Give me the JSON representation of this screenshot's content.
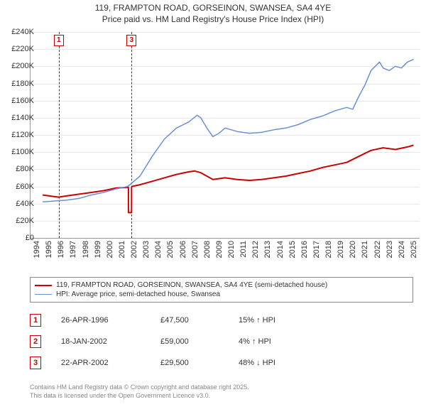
{
  "title_line1": "119, FRAMPTON ROAD, GORSEINON, SWANSEA, SA4 4YE",
  "title_line2": "Price paid vs. HM Land Registry's House Price Index (HPI)",
  "chart": {
    "type": "line",
    "xlim": [
      1994,
      2026
    ],
    "ylim": [
      0,
      240000
    ],
    "ytick_step": 20000,
    "ylabel_format_k": true,
    "grid_color": "#e8e8e8",
    "axis_color": "#999999",
    "font_size": 11,
    "x_ticks": [
      1994,
      1995,
      1996,
      1997,
      1998,
      1999,
      2000,
      2001,
      2002,
      2003,
      2004,
      2005,
      2006,
      2007,
      2008,
      2009,
      2010,
      2011,
      2012,
      2013,
      2014,
      2015,
      2016,
      2017,
      2018,
      2019,
      2020,
      2021,
      2022,
      2023,
      2024,
      2025
    ],
    "series": [
      {
        "name": "119, FRAMPTON ROAD, GORSEINON, SWANSEA, SA4 4YE (semi-detached house)",
        "color": "#cc0000",
        "width": 2,
        "data": [
          [
            1995.0,
            50000
          ],
          [
            1995.5,
            49000
          ],
          [
            1996.3,
            47500
          ],
          [
            1997.0,
            49000
          ],
          [
            1998.0,
            51000
          ],
          [
            1999.0,
            53000
          ],
          [
            2000.0,
            55000
          ],
          [
            2001.0,
            58000
          ],
          [
            2002.04,
            59000
          ],
          [
            2002.05,
            59000
          ],
          [
            2002.055,
            29500
          ],
          [
            2002.31,
            29500
          ],
          [
            2002.31,
            59000
          ],
          [
            2002.35,
            60000
          ],
          [
            2003.0,
            62000
          ],
          [
            2004.0,
            66000
          ],
          [
            2005.0,
            70000
          ],
          [
            2006.0,
            74000
          ],
          [
            2007.0,
            77000
          ],
          [
            2007.5,
            78000
          ],
          [
            2008.0,
            76000
          ],
          [
            2009.0,
            68000
          ],
          [
            2010.0,
            70000
          ],
          [
            2011.0,
            68000
          ],
          [
            2012.0,
            67000
          ],
          [
            2013.0,
            68000
          ],
          [
            2014.0,
            70000
          ],
          [
            2015.0,
            72000
          ],
          [
            2016.0,
            75000
          ],
          [
            2017.0,
            78000
          ],
          [
            2018.0,
            82000
          ],
          [
            2019.0,
            85000
          ],
          [
            2020.0,
            88000
          ],
          [
            2021.0,
            95000
          ],
          [
            2022.0,
            102000
          ],
          [
            2023.0,
            105000
          ],
          [
            2024.0,
            103000
          ],
          [
            2025.0,
            106000
          ],
          [
            2025.5,
            108000
          ]
        ]
      },
      {
        "name": "HPI: Average price, semi-detached house, Swansea",
        "color": "#6b8fd4",
        "width": 1.5,
        "data": [
          [
            1995.0,
            42000
          ],
          [
            1996.0,
            43000
          ],
          [
            1997.0,
            44000
          ],
          [
            1998.0,
            46000
          ],
          [
            1999.0,
            50000
          ],
          [
            2000.0,
            53000
          ],
          [
            2001.0,
            57000
          ],
          [
            2002.0,
            60000
          ],
          [
            2003.0,
            72000
          ],
          [
            2004.0,
            95000
          ],
          [
            2005.0,
            115000
          ],
          [
            2006.0,
            128000
          ],
          [
            2007.0,
            135000
          ],
          [
            2007.7,
            143000
          ],
          [
            2008.0,
            140000
          ],
          [
            2008.5,
            128000
          ],
          [
            2009.0,
            118000
          ],
          [
            2009.5,
            122000
          ],
          [
            2010.0,
            128000
          ],
          [
            2011.0,
            124000
          ],
          [
            2012.0,
            122000
          ],
          [
            2013.0,
            123000
          ],
          [
            2014.0,
            126000
          ],
          [
            2015.0,
            128000
          ],
          [
            2016.0,
            132000
          ],
          [
            2017.0,
            138000
          ],
          [
            2018.0,
            142000
          ],
          [
            2019.0,
            148000
          ],
          [
            2020.0,
            152000
          ],
          [
            2020.5,
            150000
          ],
          [
            2021.0,
            165000
          ],
          [
            2021.5,
            178000
          ],
          [
            2022.0,
            195000
          ],
          [
            2022.7,
            205000
          ],
          [
            2023.0,
            198000
          ],
          [
            2023.5,
            195000
          ],
          [
            2024.0,
            200000
          ],
          [
            2024.5,
            198000
          ],
          [
            2025.0,
            205000
          ],
          [
            2025.5,
            208000
          ]
        ]
      }
    ],
    "markers": [
      {
        "id": "1",
        "x": 1996.32,
        "color": "#cc0000"
      },
      {
        "id": "3",
        "x": 2002.31,
        "color": "#cc0000"
      }
    ]
  },
  "legend": [
    {
      "color": "#cc0000",
      "width": 2,
      "text": "119, FRAMPTON ROAD, GORSEINON, SWANSEA, SA4 4YE (semi-detached house)"
    },
    {
      "color": "#6b8fd4",
      "width": 1.5,
      "text": "HPI: Average price, semi-detached house, Swansea"
    }
  ],
  "sales": [
    {
      "id": "1",
      "color": "#cc0000",
      "date": "26-APR-1996",
      "price": "£47,500",
      "delta": "15% ↑ HPI"
    },
    {
      "id": "2",
      "color": "#cc0000",
      "date": "18-JAN-2002",
      "price": "£59,000",
      "delta": "4% ↑ HPI"
    },
    {
      "id": "3",
      "color": "#cc0000",
      "date": "22-APR-2002",
      "price": "£29,500",
      "delta": "48% ↓ HPI"
    }
  ],
  "attribution_line1": "Contains HM Land Registry data © Crown copyright and database right 2025.",
  "attribution_line2": "This data is licensed under the Open Government Licence v3.0."
}
